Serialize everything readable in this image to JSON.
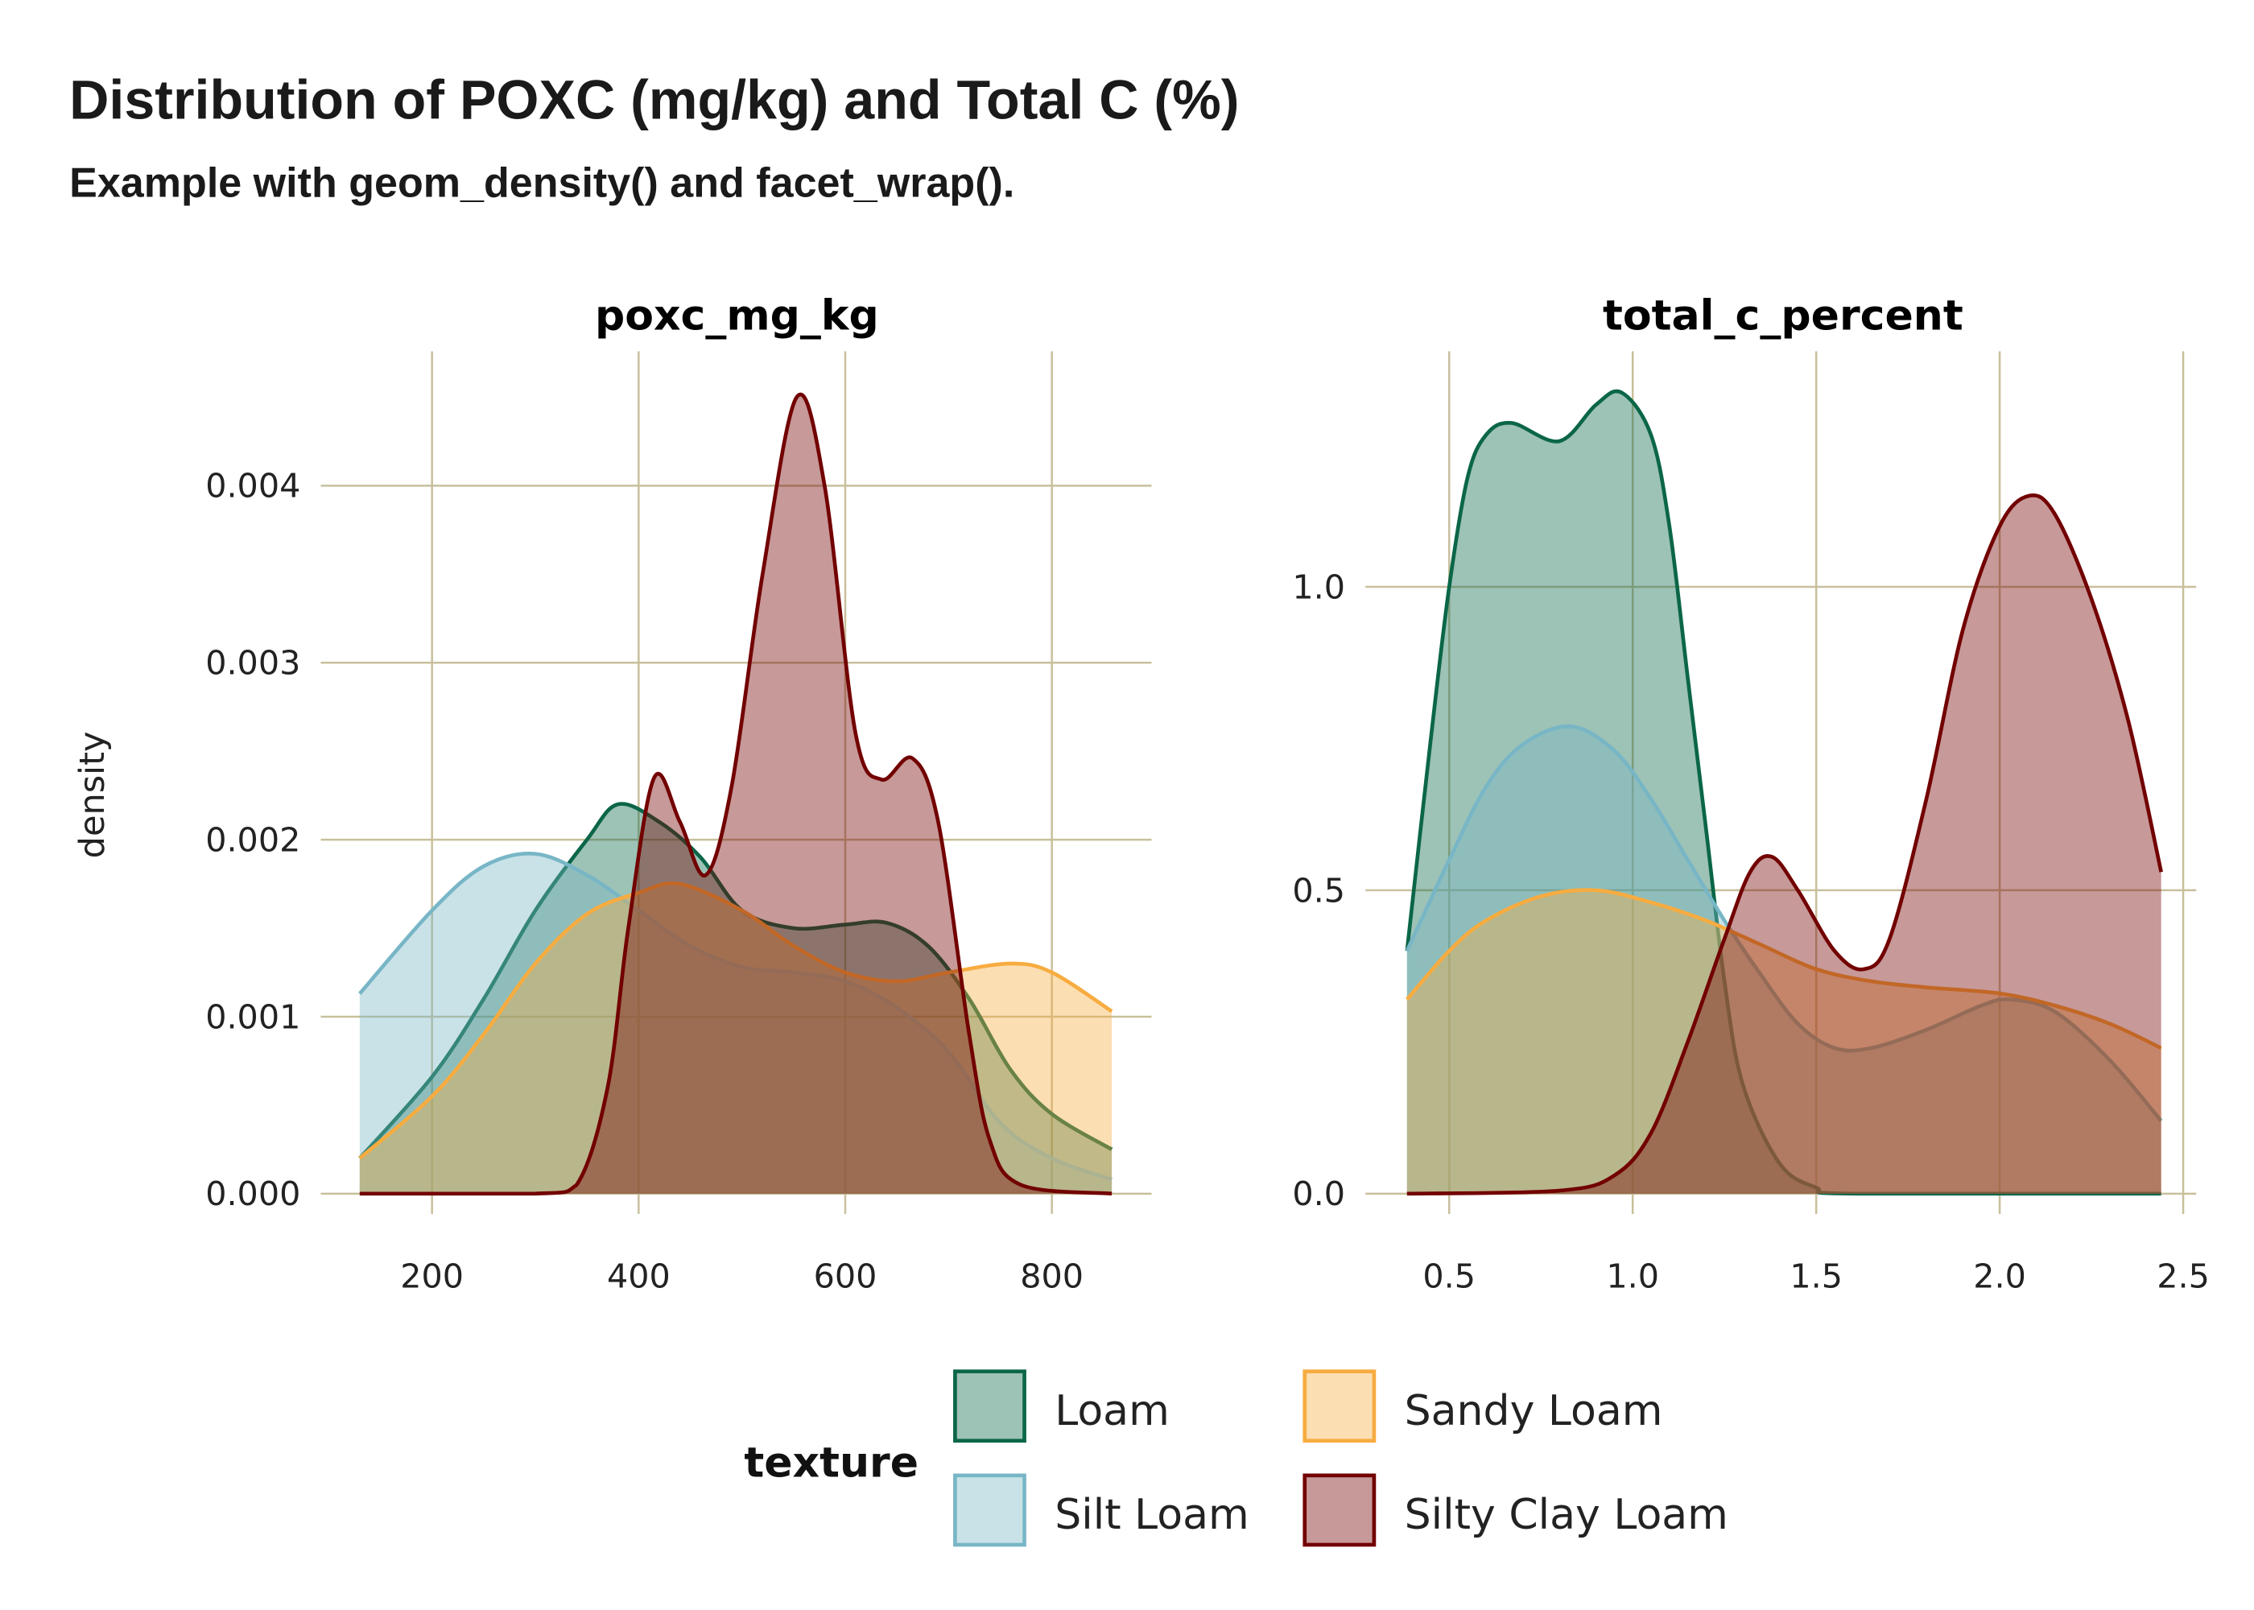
{
  "title": "Distribution of POXC (mg/kg) and Total C (%)",
  "subtitle": "Example with geom_density() and facet_wrap().",
  "colors": {
    "Loam": "#0b6648",
    "Silt Loam": "#78b6c6",
    "Sandy Loam": "#f7ac40",
    "Silty Clay Loam": "#720000",
    "grid": "#c8c09c"
  },
  "chart_data": [
    {
      "type": "area",
      "title": "poxc_mg_kg",
      "xlabel": "",
      "ylabel": "density",
      "xlim": [
        130,
        858
      ],
      "ylim": [
        0,
        0.0046
      ],
      "x_ticks": [
        "200",
        "400",
        "600",
        "800"
      ],
      "y_ticks": [
        "0.000",
        "0.001",
        "0.002",
        "0.003",
        "0.004"
      ],
      "grid": true,
      "series": [
        {
          "name": "Loam",
          "x": [
            130,
            200,
            250,
            300,
            350,
            380,
            420,
            460,
            500,
            550,
            600,
            640,
            680,
            720,
            760,
            800,
            858
          ],
          "y": [
            0.0002,
            0.00066,
            0.0011,
            0.0016,
            0.002,
            0.0022,
            0.0021,
            0.0019,
            0.0016,
            0.0015,
            0.00152,
            0.00153,
            0.0014,
            0.0011,
            0.0007,
            0.00045,
            0.00025
          ]
        },
        {
          "name": "Silt Loam",
          "x": [
            130,
            200,
            250,
            300,
            350,
            400,
            450,
            500,
            550,
            600,
            650,
            700,
            750,
            800,
            858
          ],
          "y": [
            0.00113,
            0.0016,
            0.00185,
            0.00192,
            0.0018,
            0.0016,
            0.0014,
            0.00128,
            0.00125,
            0.0012,
            0.00105,
            0.0008,
            0.0004,
            0.0002,
            8e-05
          ]
        },
        {
          "name": "Sandy Loam",
          "x": [
            130,
            200,
            250,
            300,
            350,
            400,
            440,
            500,
            550,
            600,
            650,
            700,
            760,
            800,
            858
          ],
          "y": [
            0.0002,
            0.00055,
            0.0009,
            0.0013,
            0.00158,
            0.0017,
            0.00175,
            0.0016,
            0.0014,
            0.00125,
            0.0012,
            0.00125,
            0.0013,
            0.00125,
            0.00103
          ]
        },
        {
          "name": "Silty Clay Loam",
          "x": [
            130,
            300,
            340,
            370,
            390,
            415,
            440,
            465,
            490,
            520,
            553,
            580,
            610,
            635,
            665,
            690,
            720,
            740,
            770,
            858
          ],
          "y": [
            0,
            0,
            5e-05,
            0.0006,
            0.0015,
            0.00235,
            0.0021,
            0.0018,
            0.0023,
            0.0035,
            0.0045,
            0.004,
            0.0026,
            0.00234,
            0.00246,
            0.0021,
            0.0009,
            0.0003,
            5e-05,
            0
          ]
        }
      ]
    },
    {
      "type": "area",
      "title": "total_c_percent",
      "xlabel": "",
      "ylabel": "density",
      "xlim": [
        0.385,
        2.44
      ],
      "ylim": [
        0,
        1.36
      ],
      "x_ticks": [
        "0.5",
        "1.0",
        "1.5",
        "2.0",
        "2.5"
      ],
      "y_ticks": [
        "0.0",
        "0.5",
        "1.0"
      ],
      "grid": true,
      "series": [
        {
          "name": "Loam",
          "x": [
            0.385,
            0.45,
            0.5,
            0.55,
            0.6,
            0.67,
            0.8,
            0.9,
            0.97,
            1.05,
            1.1,
            1.15,
            1.2,
            1.25,
            1.3,
            1.4,
            1.5,
            1.6,
            2.44
          ],
          "y": [
            0.4,
            0.75,
            1.0,
            1.18,
            1.25,
            1.27,
            1.24,
            1.3,
            1.32,
            1.25,
            1.1,
            0.85,
            0.6,
            0.35,
            0.18,
            0.05,
            0.01,
            0,
            0
          ]
        },
        {
          "name": "Silt Loam",
          "x": [
            0.385,
            0.5,
            0.6,
            0.7,
            0.83,
            0.95,
            1.05,
            1.15,
            1.25,
            1.35,
            1.45,
            1.55,
            1.65,
            1.8,
            1.95,
            2.03,
            2.15,
            2.3,
            2.44
          ],
          "y": [
            0.4,
            0.55,
            0.67,
            0.74,
            0.77,
            0.73,
            0.65,
            0.55,
            0.45,
            0.36,
            0.28,
            0.24,
            0.24,
            0.27,
            0.31,
            0.32,
            0.3,
            0.22,
            0.12
          ]
        },
        {
          "name": "Sandy Loam",
          "x": [
            0.385,
            0.5,
            0.6,
            0.75,
            0.9,
            1.05,
            1.2,
            1.35,
            1.5,
            1.65,
            1.8,
            2.0,
            2.15,
            2.3,
            2.44
          ],
          "y": [
            0.32,
            0.4,
            0.45,
            0.49,
            0.5,
            0.48,
            0.45,
            0.41,
            0.37,
            0.35,
            0.34,
            0.33,
            0.31,
            0.28,
            0.24
          ]
        },
        {
          "name": "Silty Clay Loam",
          "x": [
            0.385,
            0.8,
            0.95,
            1.05,
            1.15,
            1.25,
            1.32,
            1.38,
            1.45,
            1.55,
            1.63,
            1.7,
            1.8,
            1.9,
            2.0,
            2.08,
            2.15,
            2.25,
            2.35,
            2.44
          ],
          "y": [
            0,
            0.005,
            0.03,
            0.1,
            0.25,
            0.42,
            0.53,
            0.555,
            0.5,
            0.4,
            0.37,
            0.42,
            0.65,
            0.93,
            1.1,
            1.15,
            1.12,
            0.98,
            0.78,
            0.53
          ]
        }
      ]
    }
  ],
  "legend": {
    "title": "texture",
    "placement": "bottom",
    "items": [
      "Loam",
      "Sandy Loam",
      "Silt Loam",
      "Silty Clay Loam"
    ]
  }
}
